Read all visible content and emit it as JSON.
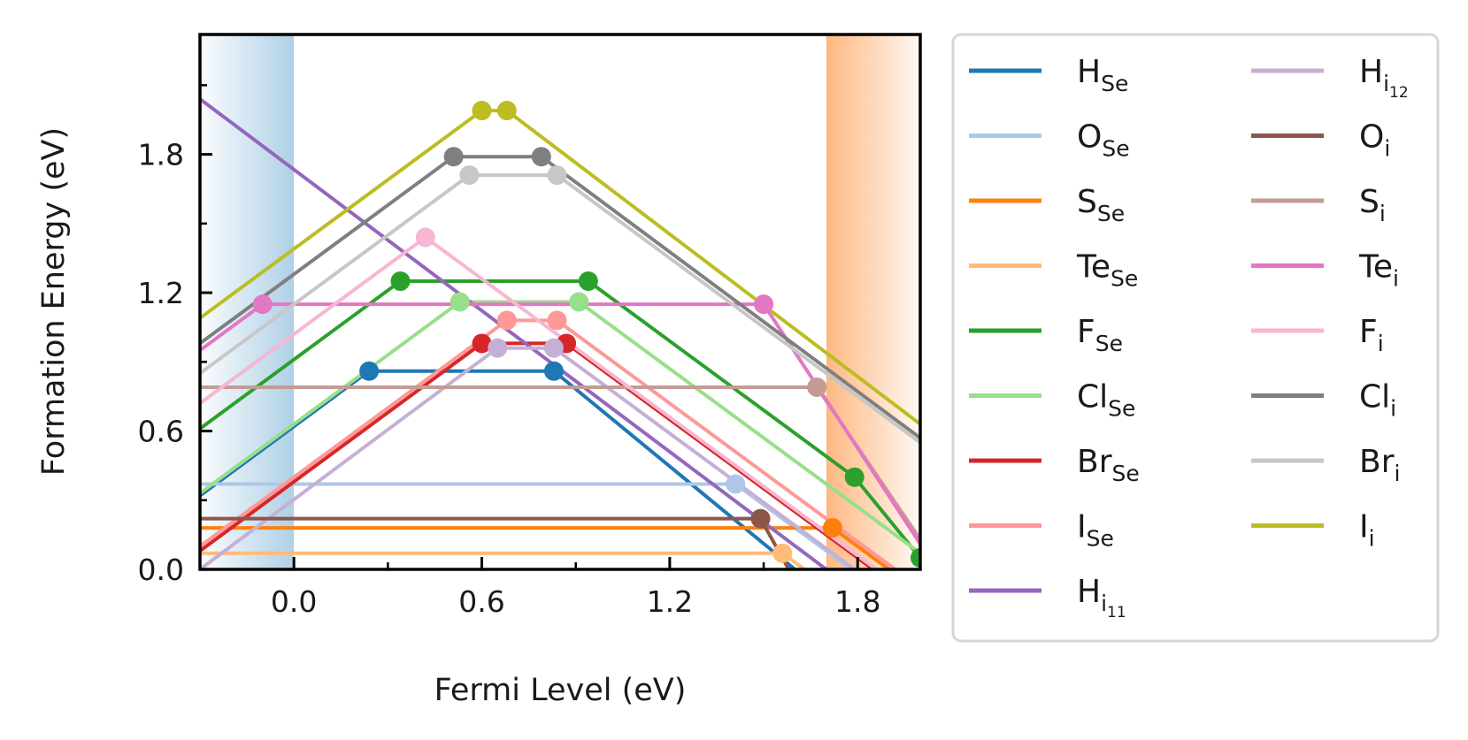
{
  "chart_data": {
    "type": "line",
    "xlabel": "Fermi Level (eV)",
    "ylabel": "Formation Energy (eV)",
    "xlim": [
      -0.3,
      2.0
    ],
    "ylim": [
      0.0,
      2.32
    ],
    "xticks": [
      0.0,
      0.6,
      1.2,
      1.8
    ],
    "xtick_labels": [
      "0.0",
      "0.6",
      "1.2",
      "1.8"
    ],
    "yticks": [
      0.0,
      0.6,
      1.2,
      1.8
    ],
    "ytick_labels": [
      "0.0",
      "0.6",
      "1.2",
      "1.8"
    ],
    "grid": false,
    "legend_position": "outside right, two columns",
    "shaded_regions": [
      {
        "x0": -0.3,
        "x1": 0.0,
        "color": "#a6cbe3",
        "side": "valence band"
      },
      {
        "x0": 1.7,
        "x1": 2.0,
        "color": "#fdb47a",
        "side": "conduction band"
      }
    ],
    "series": [
      {
        "name": "HSe",
        "base": "H",
        "sub": "Se",
        "color": "#1f77b4",
        "x": [
          -0.3,
          0.24,
          0.83,
          1.6
        ],
        "y": [
          0.32,
          0.86,
          0.86,
          0.0
        ],
        "markers": [
          [
            0.24,
            0.86
          ],
          [
            0.83,
            0.86
          ]
        ]
      },
      {
        "name": "OSe",
        "base": "O",
        "sub": "Se",
        "color": "#aec7e8",
        "x": [
          -0.3,
          1.41,
          2.0
        ],
        "y": [
          0.37,
          0.37,
          -0.22
        ],
        "markers": [
          [
            1.41,
            0.37
          ]
        ]
      },
      {
        "name": "SSe",
        "base": "S",
        "sub": "Se",
        "color": "#ff7f0e",
        "x": [
          -0.3,
          1.72,
          2.0
        ],
        "y": [
          0.18,
          0.18,
          -0.1
        ],
        "markers": [
          [
            1.72,
            0.18
          ]
        ]
      },
      {
        "name": "TeSe",
        "base": "Te",
        "sub": "Se",
        "color": "#ffbb78",
        "x": [
          -0.3,
          1.56,
          2.0
        ],
        "y": [
          0.07,
          0.07,
          -0.37
        ],
        "markers": [
          [
            1.56,
            0.07
          ]
        ]
      },
      {
        "name": "FSe",
        "base": "F",
        "sub": "Se",
        "color": "#2ca02c",
        "x": [
          -0.3,
          0.34,
          0.94,
          1.79,
          2.0
        ],
        "y": [
          0.61,
          1.25,
          1.25,
          0.4,
          0.05
        ],
        "markers": [
          [
            0.34,
            1.25
          ],
          [
            0.94,
            1.25
          ],
          [
            1.79,
            0.4
          ],
          [
            2.0,
            0.05
          ]
        ]
      },
      {
        "name": "ClSe",
        "base": "Cl",
        "sub": "Se",
        "color": "#98df8a",
        "x": [
          -0.3,
          0.53,
          0.91,
          2.0
        ],
        "y": [
          0.33,
          1.16,
          1.16,
          0.07
        ],
        "markers": [
          [
            0.53,
            1.16
          ],
          [
            0.91,
            1.16
          ]
        ]
      },
      {
        "name": "BrSe",
        "base": "Br",
        "sub": "Se",
        "color": "#d62728",
        "x": [
          -0.3,
          0.6,
          0.87,
          2.0
        ],
        "y": [
          0.08,
          0.98,
          0.98,
          -0.15
        ],
        "markers": [
          [
            0.6,
            0.98
          ],
          [
            0.87,
            0.98
          ]
        ]
      },
      {
        "name": "ISe",
        "base": "I",
        "sub": "Se",
        "color": "#ff9896",
        "x": [
          -0.3,
          0.68,
          0.84,
          2.0
        ],
        "y": [
          0.1,
          1.08,
          1.08,
          -0.08
        ],
        "markers": [
          [
            0.68,
            1.08
          ],
          [
            0.84,
            1.08
          ]
        ]
      },
      {
        "name": "Hi11",
        "base": "H",
        "sub": "i",
        "subsub": "11",
        "color": "#9467bd",
        "x": [
          -0.3,
          1.7
        ],
        "y": [
          2.04,
          0.0
        ],
        "markers": []
      },
      {
        "name": "Hi12",
        "base": "H",
        "sub": "i",
        "subsub": "12",
        "color": "#c5b0d5",
        "x": [
          -0.3,
          0.65,
          0.83,
          2.0
        ],
        "y": [
          0.0,
          0.96,
          0.96,
          -0.21
        ],
        "markers": [
          [
            0.65,
            0.96
          ],
          [
            0.83,
            0.96
          ]
        ]
      },
      {
        "name": "Oi",
        "base": "O",
        "sub": "i",
        "color": "#8c564b",
        "x": [
          -0.3,
          1.49,
          1.58
        ],
        "y": [
          0.22,
          0.22,
          0.0
        ],
        "markers": [
          [
            1.49,
            0.22
          ]
        ]
      },
      {
        "name": "Si",
        "base": "S",
        "sub": "i",
        "color": "#c49c94",
        "x": [
          -0.3,
          1.67,
          2.0
        ],
        "y": [
          0.79,
          0.79,
          0.13
        ],
        "markers": [
          [
            1.67,
            0.79
          ]
        ]
      },
      {
        "name": "Tei",
        "base": "Te",
        "sub": "i",
        "color": "#e377c2",
        "x": [
          -0.3,
          -0.1,
          1.5,
          2.0
        ],
        "y": [
          0.95,
          1.15,
          1.15,
          0.11
        ],
        "markers": [
          [
            -0.1,
            1.15
          ],
          [
            1.5,
            1.15
          ]
        ]
      },
      {
        "name": "Fi",
        "base": "F",
        "sub": "i",
        "color": "#f7b6d2",
        "x": [
          -0.3,
          0.42,
          2.0
        ],
        "y": [
          0.72,
          1.44,
          -0.14
        ],
        "markers": [
          [
            0.42,
            1.44
          ]
        ]
      },
      {
        "name": "Cli",
        "base": "Cl",
        "sub": "i",
        "color": "#7f7f7f",
        "x": [
          -0.3,
          0.51,
          0.79,
          2.0
        ],
        "y": [
          0.98,
          1.79,
          1.79,
          0.57
        ],
        "markers": [
          [
            0.51,
            1.79
          ],
          [
            0.79,
            1.79
          ]
        ]
      },
      {
        "name": "Bri",
        "base": "Br",
        "sub": "i",
        "color": "#c7c7c7",
        "x": [
          -0.3,
          0.56,
          0.84,
          2.0
        ],
        "y": [
          0.85,
          1.71,
          1.71,
          0.55
        ],
        "markers": [
          [
            0.56,
            1.71
          ],
          [
            0.84,
            1.71
          ]
        ]
      },
      {
        "name": "Ii",
        "base": "I",
        "sub": "i",
        "color": "#bcbd22",
        "x": [
          -0.3,
          0.6,
          0.68,
          2.0
        ],
        "y": [
          1.09,
          1.99,
          1.99,
          0.63
        ],
        "markers": [
          [
            0.6,
            1.99
          ],
          [
            0.68,
            1.99
          ]
        ]
      }
    ]
  }
}
